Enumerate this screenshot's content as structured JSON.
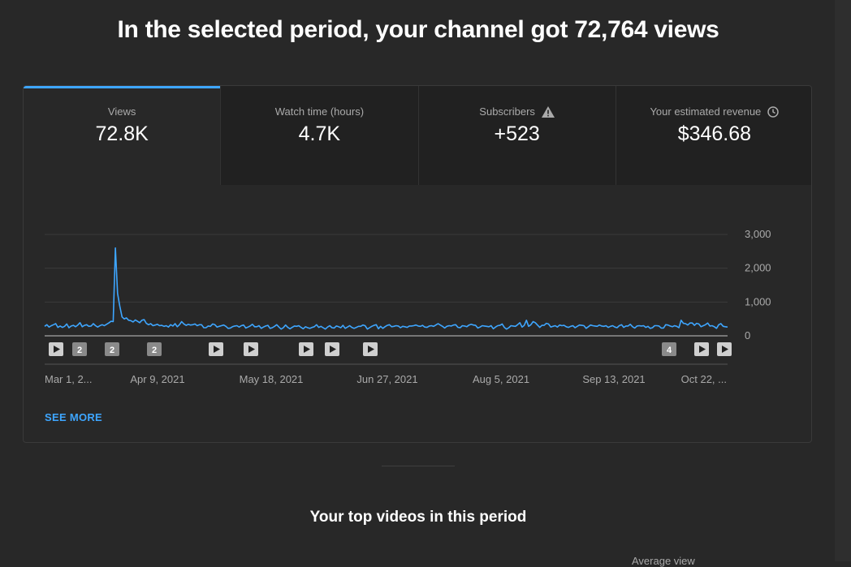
{
  "headline": "In the selected period, your channel got 72,764 views",
  "tabs": [
    {
      "label": "Views",
      "value": "72.8K",
      "icon": ""
    },
    {
      "label": "Watch time (hours)",
      "value": "4.7K",
      "icon": ""
    },
    {
      "label": "Subscribers",
      "value": "+523",
      "icon": "warning-icon"
    },
    {
      "label": "Your estimated revenue",
      "value": "$346.68",
      "icon": "clock-icon"
    }
  ],
  "chart_data": {
    "type": "line",
    "x_tick_labels": [
      "Mar 1, 2...",
      "Apr 9, 2021",
      "May 18, 2021",
      "Jun 27, 2021",
      "Aug 5, 2021",
      "Sep 13, 2021",
      "Oct 22, ..."
    ],
    "y_tick_labels": [
      "3,000",
      "2,000",
      "1,000",
      "0"
    ],
    "ylim": [
      0,
      3000
    ],
    "series": [
      {
        "color": "#3ea6ff",
        "values": [
          280,
          330,
          260,
          300,
          330,
          360,
          250,
          290,
          250,
          280,
          350,
          240,
          290,
          310,
          270,
          320,
          390,
          270,
          310,
          330,
          280,
          290,
          360,
          300,
          260,
          300,
          330,
          300,
          340,
          380,
          430,
          420,
          2600,
          1250,
          880,
          560,
          500,
          530,
          460,
          450,
          410,
          470,
          430,
          390,
          460,
          480,
          370,
          330,
          360,
          300,
          320,
          340,
          300,
          310,
          280,
          300,
          260,
          330,
          290,
          360,
          270,
          330,
          420,
          350,
          310,
          340,
          320,
          330,
          350,
          300,
          330,
          330,
          240,
          240,
          290,
          280,
          350,
          330,
          260,
          280,
          300,
          320,
          280,
          220,
          230,
          270,
          290,
          300,
          260,
          300,
          320,
          230,
          260,
          290,
          340,
          270,
          270,
          300,
          220,
          260,
          290,
          310,
          220,
          240,
          280,
          330,
          260,
          200,
          240,
          320,
          250,
          210,
          250,
          290,
          280,
          300,
          250,
          210,
          270,
          240,
          220,
          250,
          270,
          330,
          250,
          280,
          240,
          200,
          260,
          300,
          240,
          230,
          290,
          270,
          240,
          310,
          220,
          260,
          300,
          250,
          220,
          250,
          280,
          280,
          320,
          300,
          200,
          240,
          280,
          310,
          330,
          210,
          280,
          220,
          270,
          310,
          330,
          270,
          280,
          300,
          290,
          240,
          280,
          270,
          250,
          290,
          290,
          300,
          320,
          290,
          280,
          310,
          260,
          250,
          290,
          300,
          280,
          320,
          360,
          320,
          280,
          230,
          280,
          300,
          290,
          320,
          330,
          250,
          240,
          300,
          290,
          270,
          320,
          340,
          320,
          310,
          230,
          260,
          300,
          290,
          280,
          270,
          300,
          210,
          260,
          300,
          310,
          350,
          250,
          200,
          240,
          300,
          290,
          280,
          330,
          390,
          260,
          310,
          460,
          280,
          330,
          420,
          390,
          320,
          250,
          310,
          310,
          370,
          350,
          260,
          280,
          300,
          260,
          320,
          300,
          310,
          270,
          250,
          280,
          300,
          240,
          280,
          320,
          310,
          300,
          220,
          270,
          320,
          300,
          290,
          280,
          320,
          290,
          280,
          300,
          250,
          280,
          300,
          260,
          240,
          300,
          330,
          250,
          290,
          290,
          340,
          270,
          230,
          290,
          300,
          290,
          300,
          250,
          280,
          220,
          240,
          300,
          300,
          290,
          230,
          230,
          330,
          320,
          290,
          270,
          300,
          280,
          240,
          460,
          370,
          360,
          320,
          380,
          380,
          310,
          370,
          350,
          270,
          300,
          330,
          380,
          290,
          300,
          270,
          220,
          330,
          360,
          280,
          270,
          260
        ]
      }
    ],
    "annotations": [
      {
        "type": "video",
        "label": ""
      },
      {
        "type": "count",
        "label": "2"
      },
      {
        "type": "count",
        "label": "2"
      },
      {
        "type": "count",
        "label": "2"
      },
      {
        "type": "video",
        "label": ""
      },
      {
        "type": "video",
        "label": ""
      },
      {
        "type": "video",
        "label": ""
      },
      {
        "type": "video",
        "label": ""
      },
      {
        "type": "video",
        "label": ""
      },
      {
        "type": "count",
        "label": "4"
      },
      {
        "type": "video",
        "label": ""
      },
      {
        "type": "video",
        "label": ""
      }
    ]
  },
  "see_more": "SEE MORE",
  "top_videos_title": "Your top videos in this period",
  "partial_column_label": "Average view"
}
